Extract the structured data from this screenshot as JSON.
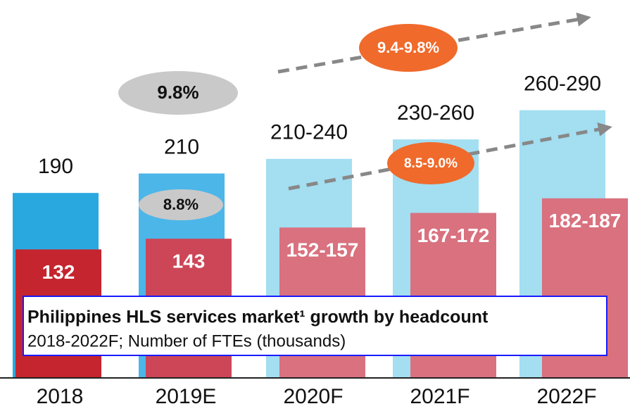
{
  "chart_data": {
    "type": "bar",
    "title": "Philippines HLS services market¹ growth by headcount",
    "subtitle": "2018-2022F; Number of FTEs (thousands)",
    "categories": [
      "2018",
      "2019E",
      "2020F",
      "2021F",
      "2022F"
    ],
    "series": [
      {
        "colors": [
          "#29a8e0",
          "#4cb6e8",
          "#a3def1",
          "#a3def1",
          "#a3def1"
        ],
        "values": [
          190,
          210,
          225,
          245,
          275
        ],
        "value_labels": [
          "190",
          "210",
          "210-240",
          "230-260",
          "260-290"
        ]
      },
      {
        "colors": [
          "#c4252e",
          "#cc4657",
          "#d9717f",
          "#d9717f",
          "#d9717f"
        ],
        "values": [
          132,
          143,
          154.5,
          169.5,
          184.5
        ],
        "value_labels": [
          "132",
          "143",
          "152-157",
          "167-172",
          "182-187"
        ]
      }
    ],
    "annotations": [
      "9.8%",
      "8.8%",
      "9.4-9.8%",
      "8.5-9.0%"
    ],
    "ylim": [
      0,
      300
    ]
  }
}
